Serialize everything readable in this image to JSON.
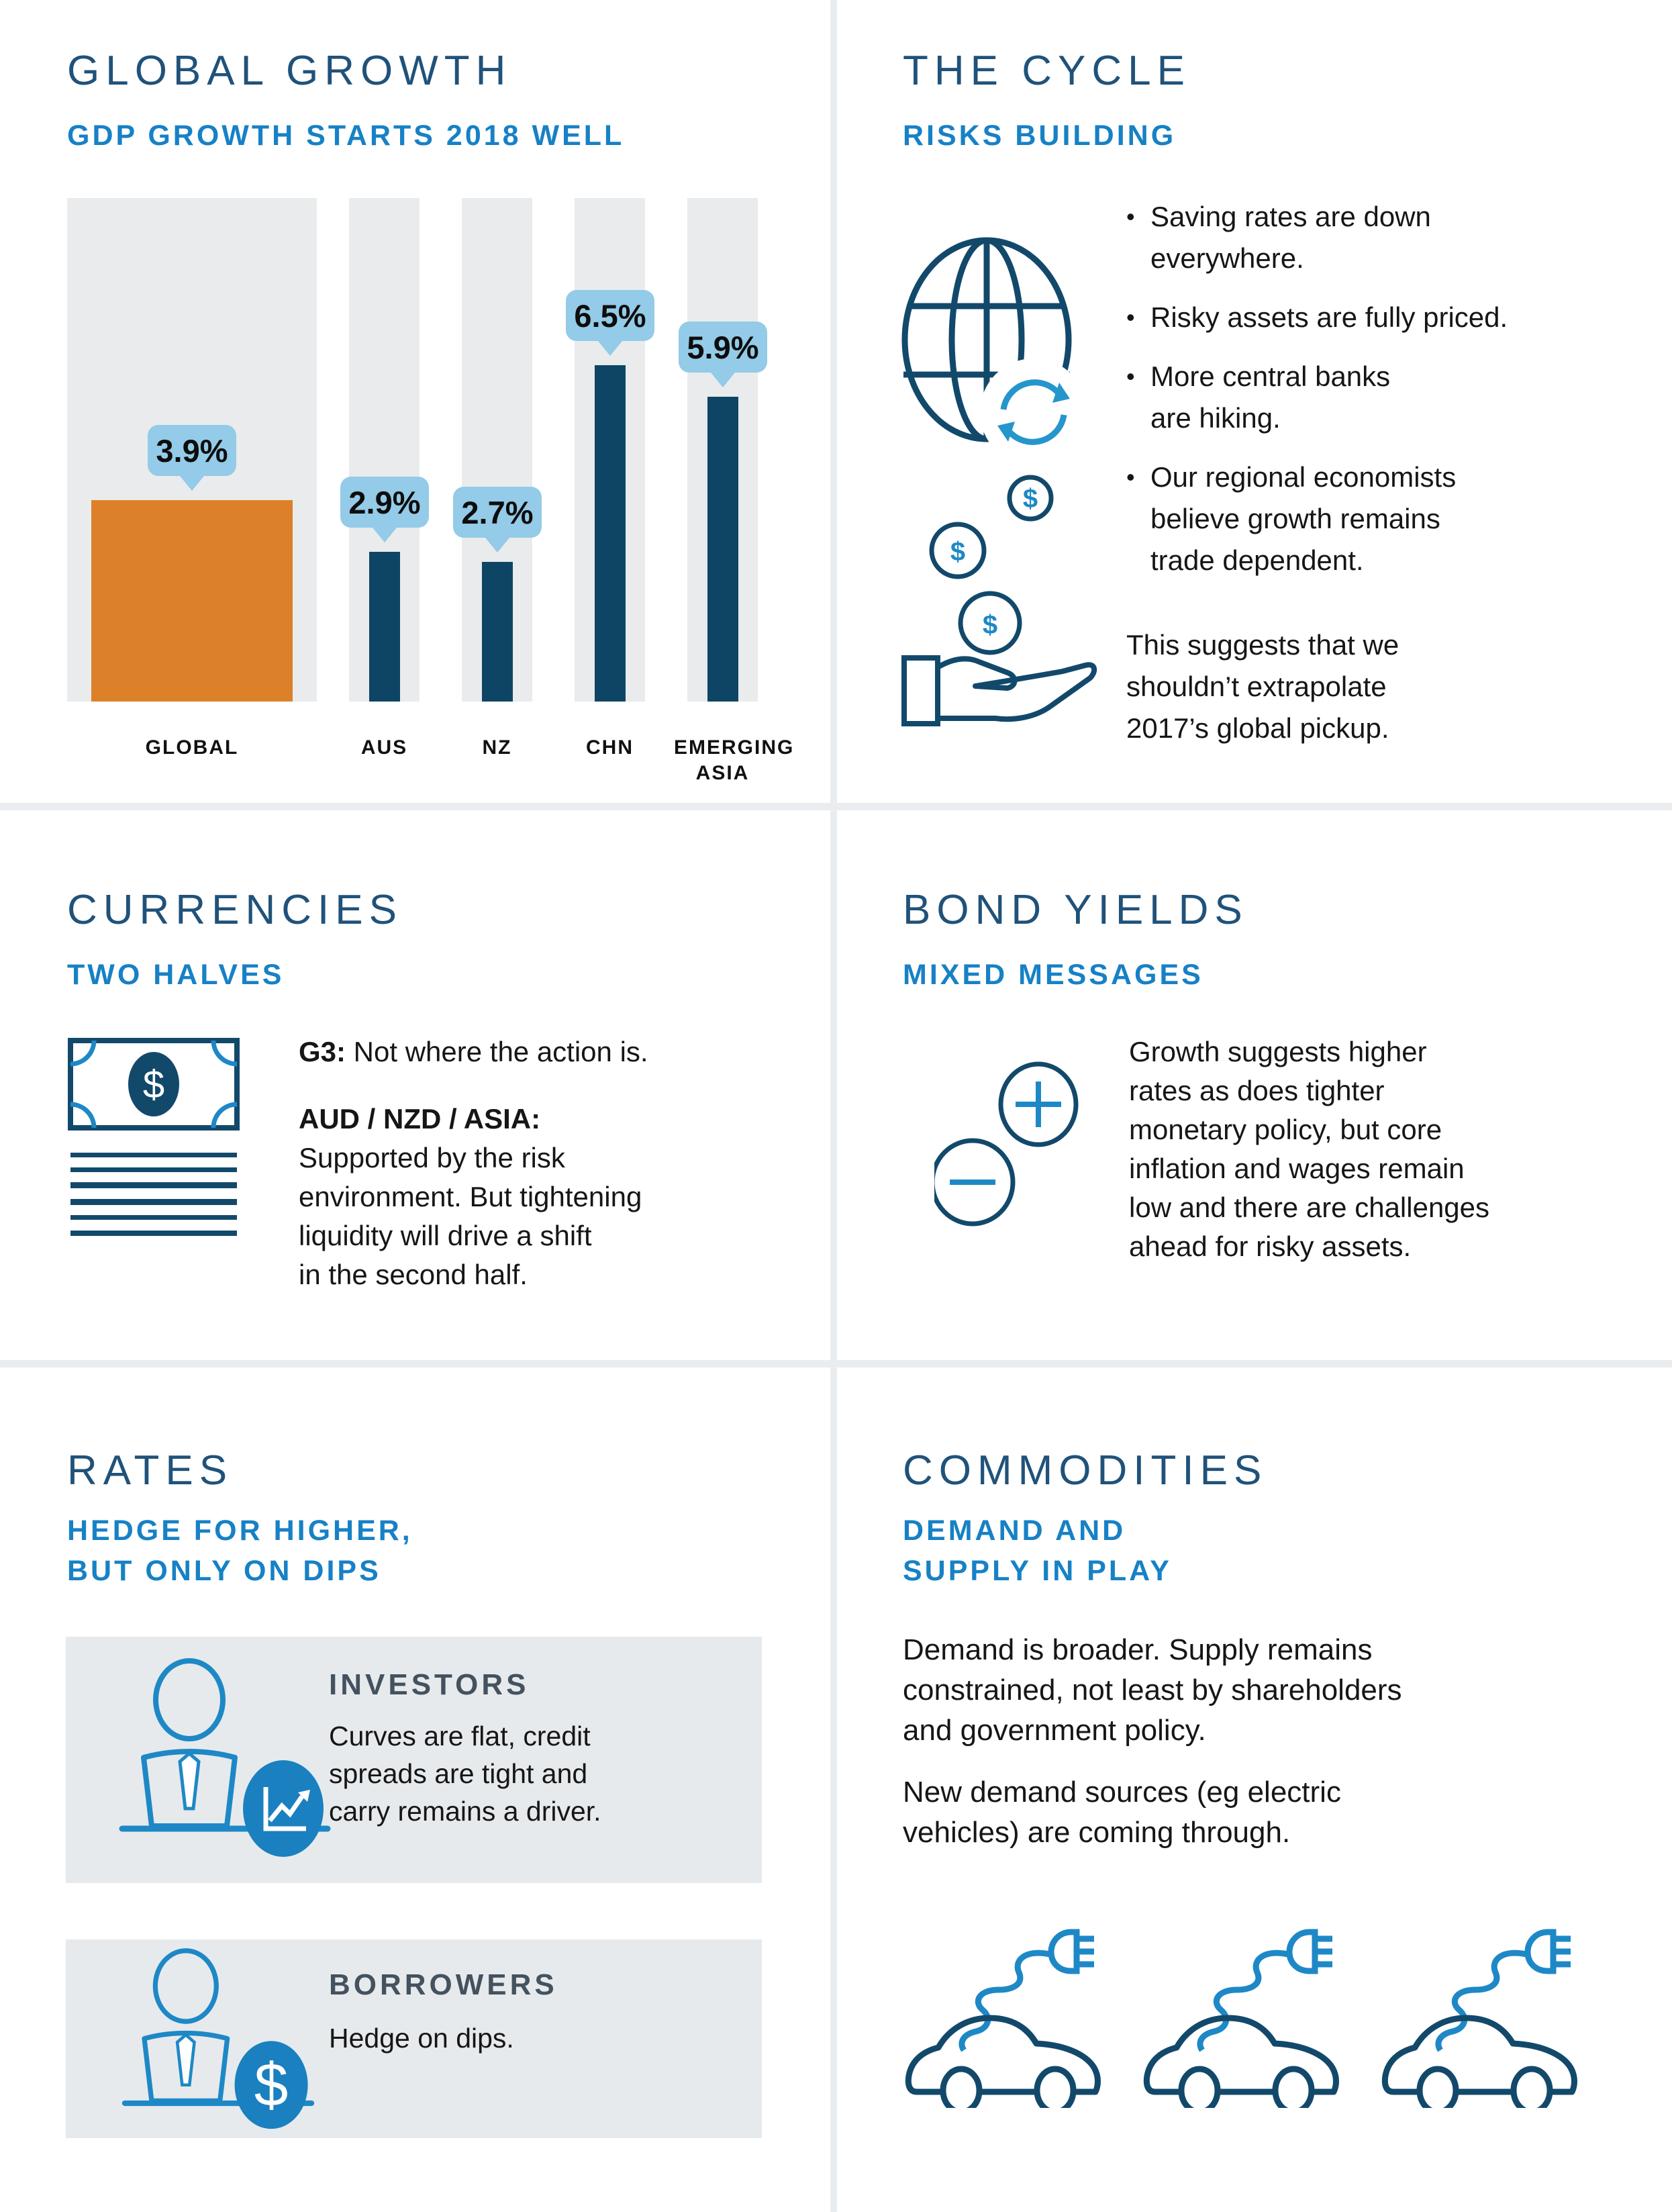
{
  "colors": {
    "title_navy": "#20527a",
    "accent_blue": "#1781c5",
    "bar_navy": "#0e4564",
    "highlight_orange": "#dc8129",
    "callout_blue": "#93cbe8",
    "track_gray": "#e9ebec",
    "card_gray": "#e7eaec",
    "divider_gray": "#e9edf0",
    "icon_blue": "#1e88c6",
    "icon_navy": "#12496b",
    "badge_blue": "#1a80c0",
    "heading_slate": "#44525f"
  },
  "global_growth": {
    "title": "GLOBAL GROWTH",
    "subtitle": "GDP GROWTH STARTS 2018 WELL"
  },
  "chart_data": {
    "type": "bar",
    "title": "GDP GROWTH STARTS 2018 WELL",
    "categories": [
      "GLOBAL",
      "AUS",
      "NZ",
      "CHN",
      "EMERGING\nASIA"
    ],
    "values": [
      3.9,
      2.9,
      2.7,
      6.5,
      5.9
    ],
    "labels": [
      "3.9%",
      "2.9%",
      "2.7%",
      "6.5%",
      "5.9%"
    ],
    "unit": "%",
    "ylim": [
      0,
      9.7
    ],
    "highlight_index": 0,
    "legend": "none",
    "grid": "off"
  },
  "the_cycle": {
    "title": "THE CYCLE",
    "subtitle": "RISKS BUILDING",
    "bullets": [
      "Saving rates are down\neverywhere.",
      "Risky assets are fully priced.",
      "More central banks\nare hiking.",
      "Our regional economists\nbelieve growth remains\ntrade dependent."
    ],
    "paragraph": "This suggests that we\nshouldn’t extrapolate\n2017’s global pickup."
  },
  "currencies": {
    "title": "CURRENCIES",
    "subtitle": "TWO HALVES",
    "items": [
      {
        "lead": "G3:",
        "text": " Not where the action is."
      },
      {
        "lead": "AUD / NZD / ASIA:",
        "text": "\nSupported by the risk\nenvironment. But tightening\nliquidity will drive a shift\nin the second half."
      }
    ]
  },
  "bond_yields": {
    "title": "BOND YIELDS",
    "subtitle": "MIXED MESSAGES",
    "paragraph": "Growth suggests higher\nrates as does tighter\nmonetary policy, but core\ninflation and wages remain\nlow and there are challenges\nahead for risky assets."
  },
  "rates": {
    "title": "RATES",
    "subtitle": "HEDGE FOR HIGHER,\nBUT ONLY ON DIPS",
    "cards": [
      {
        "heading": "INVESTORS",
        "text": "Curves are flat, credit\nspreads are tight and\ncarry remains a driver."
      },
      {
        "heading": "BORROWERS",
        "text": "Hedge on dips."
      }
    ]
  },
  "commodities": {
    "title": "COMMODITIES",
    "subtitle": "DEMAND AND\nSUPPLY IN PLAY",
    "paragraphs": [
      "Demand is broader. Supply remains\nconstrained, not least by shareholders\nand government policy.",
      "New demand sources (eg electric\nvehicles) are coming through."
    ]
  }
}
